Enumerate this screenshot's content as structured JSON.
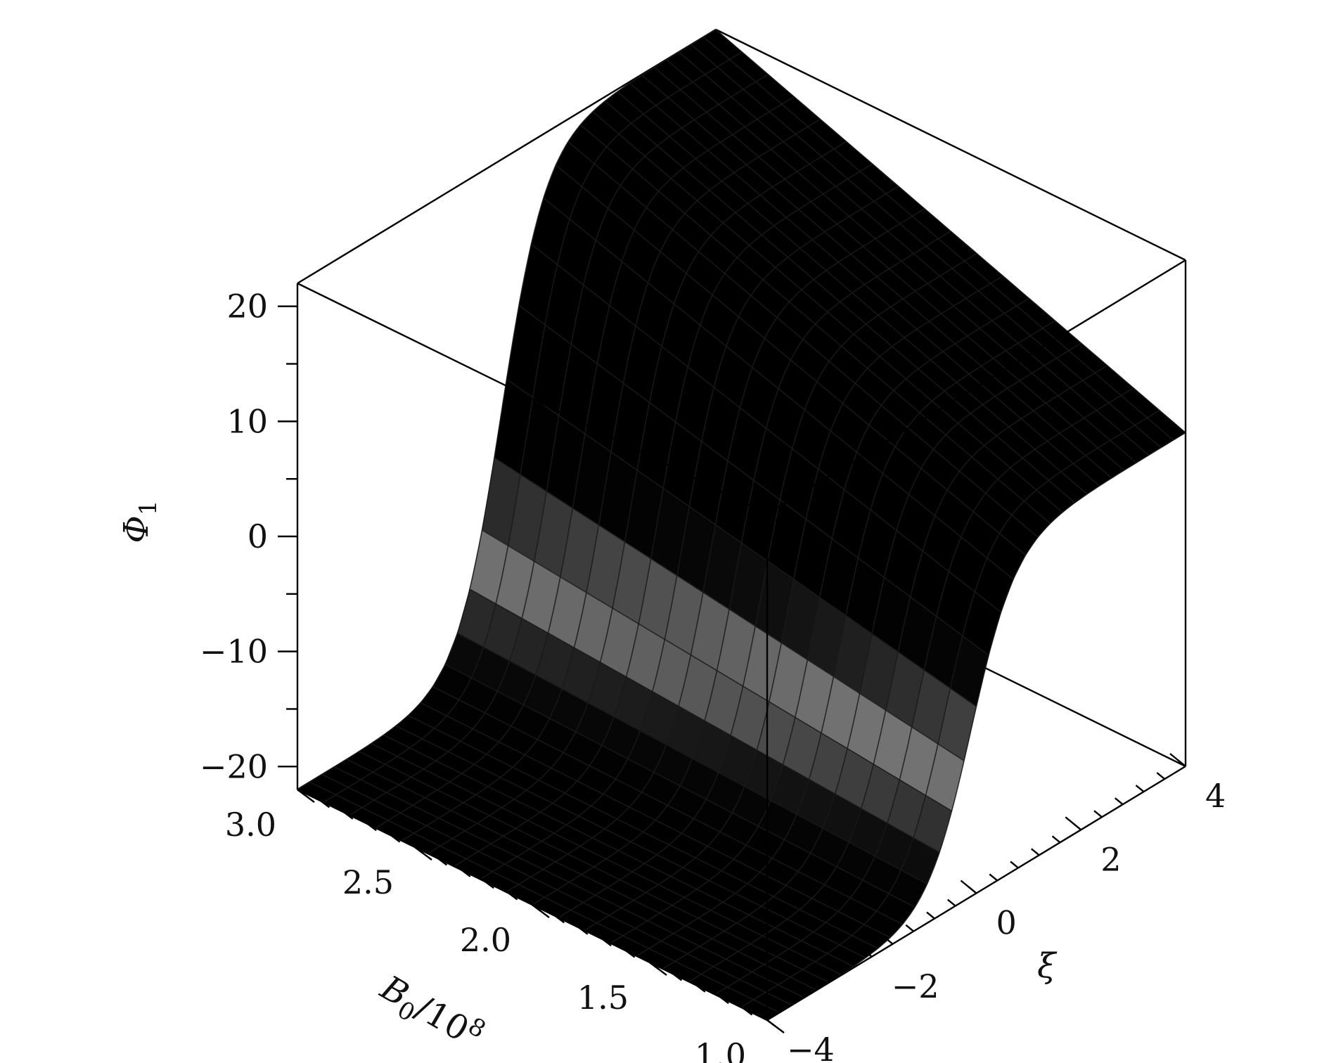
{
  "chart_data": {
    "type": "surface3d",
    "title": "",
    "axes": {
      "z": {
        "label": "Φ",
        "label_subscript": "1",
        "range": [
          -22,
          22
        ],
        "ticks": [
          -20,
          -10,
          0,
          10,
          20
        ],
        "tick_labels": [
          "−20",
          "−10",
          "0",
          "10",
          "20"
        ]
      },
      "b": {
        "label": "B",
        "label_subscript": "0",
        "label_suffix": "/10",
        "label_superscript": "8",
        "range": [
          1.0,
          3.0
        ],
        "ticks": [
          1.0,
          1.5,
          2.0,
          2.5,
          3.0
        ],
        "tick_labels": [
          "1.0",
          "1.5",
          "2.0",
          "2.5",
          "3.0"
        ]
      },
      "xi": {
        "label": "ξ",
        "range": [
          -4,
          4
        ],
        "ticks": [
          -4,
          -2,
          0,
          2,
          4
        ],
        "tick_labels": [
          "−4",
          "−2",
          "0",
          "2",
          "4"
        ]
      }
    },
    "surface": {
      "description_values": {
        "xi_min_plateau": -22,
        "xi_max_value_at_B_3": 22,
        "xi_max_value_at_B_1": 7
      },
      "mesh_b_count": 18,
      "mesh_xi_count": 34,
      "colormap": [
        "#5dff7a",
        "#fffcd0",
        "#ffffff",
        "#f090f0",
        "#c0408a",
        "#6a6adb"
      ]
    }
  }
}
